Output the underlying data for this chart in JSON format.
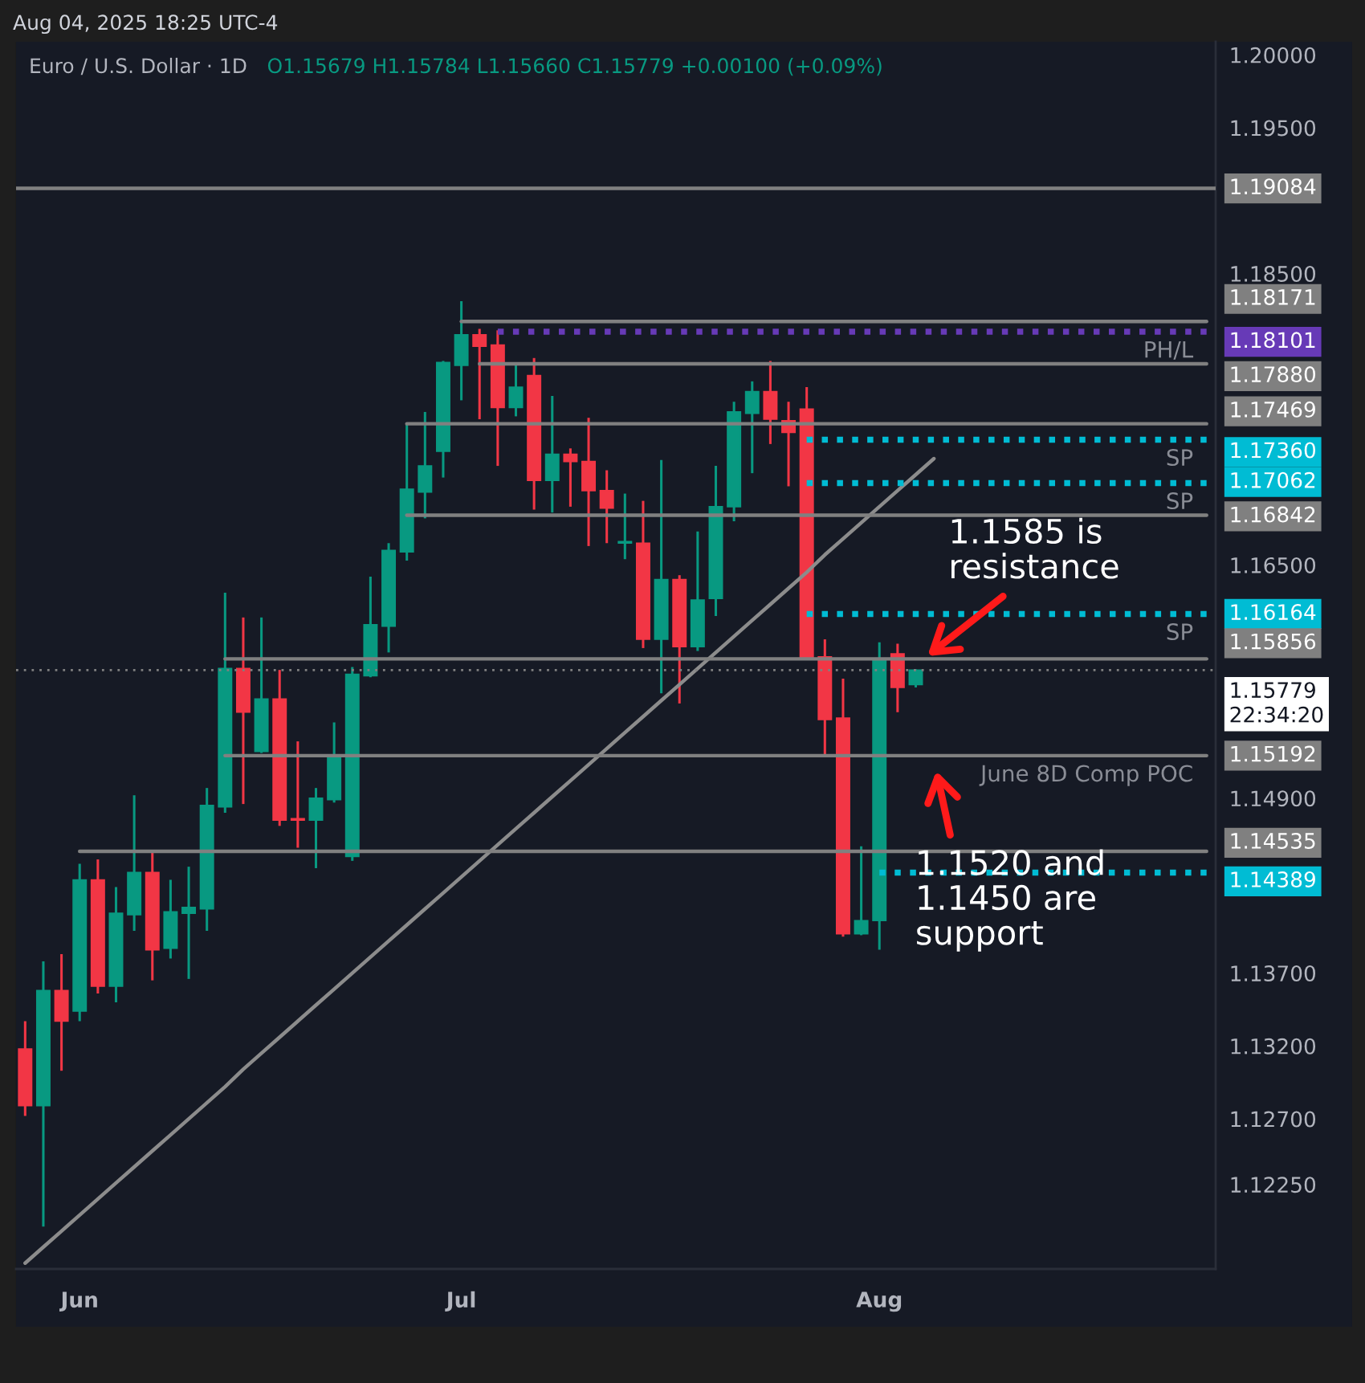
{
  "chart_data": {
    "type": "candlestick",
    "title": "Euro / U.S. Dollar · 1D",
    "subtitle": "O1.15679 H1.15784 L1.15660 C1.15779 +0.00100 (+0.09%)",
    "categories": [
      null,
      null,
      null,
      "Jun",
      null,
      null,
      null,
      null,
      null,
      null,
      null,
      null,
      null,
      null,
      null,
      null,
      null,
      null,
      null,
      null,
      null,
      null,
      null,
      null,
      "Jul",
      null,
      null,
      null,
      null,
      null,
      null,
      null,
      null,
      null,
      null,
      null,
      null,
      null,
      null,
      null,
      null,
      null,
      null,
      null,
      null,
      null,
      null,
      "Aug",
      null,
      null,
      null,
      null,
      null,
      null,
      null,
      null,
      null,
      null,
      null,
      null,
      null,
      null,
      null,
      null,
      null,
      null
    ],
    "ohlc": [
      [
        1.1318,
        1.1337,
        1.1272,
        1.1279
      ],
      [
        1.1279,
        1.1378,
        1.1196,
        1.1358
      ],
      [
        1.1358,
        1.1383,
        1.1303,
        1.1337
      ],
      [
        1.1344,
        1.1445,
        1.1337,
        1.1434
      ],
      [
        1.1434,
        1.1448,
        1.1356,
        1.1361
      ],
      [
        1.1361,
        1.1429,
        1.135,
        1.1411
      ],
      [
        1.141,
        1.1492,
        1.1399,
        1.1439
      ],
      [
        1.1439,
        1.1453,
        1.1365,
        1.1386
      ],
      [
        1.1387,
        1.1434,
        1.138,
        1.1412
      ],
      [
        1.1411,
        1.1443,
        1.1366,
        1.1415
      ],
      [
        1.1414,
        1.1497,
        1.1399,
        1.1485
      ],
      [
        1.1484,
        1.1631,
        1.148,
        1.1579
      ],
      [
        1.1579,
        1.1614,
        1.1486,
        1.1549
      ],
      [
        1.1522,
        1.1614,
        1.1521,
        1.1558
      ],
      [
        1.1558,
        1.1578,
        1.1471,
        1.1475
      ],
      [
        1.1476,
        1.1529,
        1.1456,
        1.1475
      ],
      [
        1.1475,
        1.1497,
        1.1442,
        1.149
      ],
      [
        1.1489,
        1.1542,
        1.1487,
        1.1519
      ],
      [
        1.145,
        1.158,
        1.1447,
        1.1575
      ],
      [
        1.1574,
        1.1642,
        1.1573,
        1.1609
      ],
      [
        1.1608,
        1.1665,
        1.159,
        1.166
      ],
      [
        1.1659,
        1.1747,
        1.1653,
        1.1702
      ],
      [
        1.17,
        1.1755,
        1.1682,
        1.1718
      ],
      [
        1.1728,
        1.179,
        1.171,
        1.1789
      ],
      [
        1.1787,
        1.1831,
        1.1763,
        1.1808
      ],
      [
        1.1808,
        1.1812,
        1.175,
        1.18
      ],
      [
        1.1801,
        1.1811,
        1.1718,
        1.1758
      ],
      [
        1.1758,
        1.1789,
        1.1752,
        1.1772
      ],
      [
        1.178,
        1.1792,
        1.1688,
        1.1708
      ],
      [
        1.1708,
        1.1766,
        1.1686,
        1.1726
      ],
      [
        1.1726,
        1.173,
        1.169,
        1.1721
      ],
      [
        1.1721,
        1.1751,
        1.1663,
        1.1701
      ],
      [
        1.1701,
        1.1715,
        1.1665,
        1.1689
      ],
      [
        1.1665,
        1.1699,
        1.1654,
        1.1666
      ],
      [
        1.1665,
        1.1694,
        1.1593,
        1.1599
      ],
      [
        1.1599,
        1.1722,
        1.1562,
        1.164
      ],
      [
        1.164,
        1.1643,
        1.1555,
        1.1594
      ],
      [
        1.1594,
        1.1673,
        1.1591,
        1.1626
      ],
      [
        1.1627,
        1.1718,
        1.1615,
        1.169
      ],
      [
        1.169,
        1.1762,
        1.168,
        1.1755
      ],
      [
        1.1754,
        1.1776,
        1.1713,
        1.1769
      ],
      [
        1.1769,
        1.179,
        1.1733,
        1.175
      ],
      [
        1.1749,
        1.1762,
        1.1704,
        1.1741
      ],
      [
        1.1757,
        1.1772,
        1.1585,
        1.1586
      ],
      [
        1.1587,
        1.1599,
        1.1518,
        1.1544
      ],
      [
        1.1545,
        1.1572,
        1.1395,
        1.1397
      ],
      [
        1.1397,
        1.1457,
        1.1396,
        1.1406
      ],
      [
        1.1406,
        1.1597,
        1.1386,
        1.1585
      ],
      [
        1.1589,
        1.1596,
        1.1549,
        1.1566
      ],
      [
        1.15679,
        1.15784,
        1.1566,
        1.15779
      ],
      null,
      null,
      null,
      null,
      null,
      null,
      null,
      null,
      null,
      null,
      null,
      null,
      null,
      null,
      null,
      null
    ],
    "colors": [
      "#f23645",
      "#089981",
      "#f23645",
      "#089981",
      "#f23645",
      "#089981",
      "#089981",
      "#f23645",
      "#089981",
      "#089981",
      "#089981",
      "#089981",
      "#f23645",
      "#089981",
      "#f23645",
      "#f23645",
      "#089981",
      "#089981",
      "#089981",
      "#089981",
      "#089981",
      "#089981",
      "#089981",
      "#089981",
      "#089981",
      "#f23645",
      "#f23645",
      "#089981",
      "#f23645",
      "#089981",
      "#f23645",
      "#f23645",
      "#f23645",
      "#089981",
      "#f23645",
      "#089981",
      "#f23645",
      "#089981",
      "#089981",
      "#089981",
      "#089981",
      "#f23645",
      "#f23645",
      "#f23645",
      "#f23645",
      "#f23645",
      "#089981",
      "#089981",
      "#f23645",
      "#089981",
      null,
      null,
      null,
      null,
      null,
      null,
      null,
      null,
      null,
      null,
      null,
      null,
      null,
      null,
      null,
      null
    ],
    "ylim": [
      1.1167,
      1.2009
    ],
    "yticks": [
      {
        "value": 1.2,
        "label": "1.20000"
      },
      {
        "value": 1.195,
        "label": "1.19500"
      },
      {
        "value": 1.185,
        "label": "1.18500"
      },
      {
        "value": 1.165,
        "label": "1.16500"
      },
      {
        "value": 1.149,
        "label": "1.14900"
      },
      {
        "value": 1.137,
        "label": "1.13700"
      },
      {
        "value": 1.132,
        "label": "1.13200"
      },
      {
        "value": 1.127,
        "label": "1.12700"
      },
      {
        "value": 1.1225,
        "label": "1.12250"
      }
    ],
    "series": [
      {
        "type": "line",
        "color": "#8c8c8c",
        "values": [
          1.1171,
          1.1182,
          1.1193,
          1.1204,
          1.1215,
          1.1226,
          1.1237,
          1.1248,
          1.1259,
          1.127,
          1.1281,
          1.1292,
          1.1304,
          1.1315,
          1.1326,
          1.1337,
          1.1348,
          1.1359,
          1.137,
          1.1381,
          1.1392,
          1.1403,
          1.1414,
          1.1425,
          1.1436,
          1.1447,
          1.1458,
          1.1469,
          1.148,
          1.1491,
          1.1502,
          1.1513,
          1.1524,
          1.1535,
          1.1546,
          1.1557,
          1.1568,
          1.1579,
          1.159,
          1.1601,
          1.1612,
          1.1623,
          1.1634,
          1.1645,
          1.1657,
          1.1668,
          1.1679,
          1.169,
          1.1701,
          1.1712,
          1.1723,
          null,
          null,
          null,
          null,
          null,
          null,
          null,
          null,
          null,
          null,
          null,
          null,
          null,
          null,
          null
        ]
      },
      {
        "type": "line",
        "color": "#808080",
        "values": [
          null,
          null,
          null,
          null,
          null,
          null,
          null,
          null,
          null,
          null,
          null,
          null,
          null,
          null,
          null,
          null,
          null,
          null,
          null,
          null,
          null,
          null,
          null,
          null,
          1.18171,
          1.18171,
          1.18171,
          1.18171,
          1.18171,
          1.18171,
          1.18171,
          1.18171,
          1.18171,
          1.18171,
          1.18171,
          1.18171,
          1.18171,
          1.18171,
          1.18171,
          1.18171,
          1.18171,
          1.18171,
          1.18171,
          1.18171,
          1.18171,
          1.18171,
          1.18171,
          1.18171,
          1.18171,
          1.18171,
          1.18171,
          1.18171,
          1.18171,
          1.18171,
          1.18171,
          1.18171,
          1.18171,
          1.18171,
          1.18171,
          1.18171,
          1.18171,
          1.18171,
          1.18171,
          1.18171,
          1.18171,
          1.18171
        ],
        "value_labels": [
          null,
          null,
          null,
          null,
          null,
          null,
          null,
          null,
          null,
          null,
          null,
          null,
          null,
          null,
          null,
          null,
          null,
          null,
          null,
          null,
          null,
          null,
          null,
          null,
          null,
          null,
          null,
          null,
          null,
          null,
          null,
          null,
          null,
          null,
          null,
          null,
          null,
          null,
          null,
          null,
          null,
          null,
          null,
          null,
          null,
          null,
          null,
          null,
          null,
          null,
          null,
          null,
          null,
          null,
          null,
          null,
          null,
          null,
          null,
          null,
          null,
          null,
          null,
          null,
          null,
          "1.18171"
        ]
      },
      {
        "type": "line",
        "color": "#673ab7",
        "line_style": "dotted",
        "values": [
          null,
          null,
          null,
          null,
          null,
          null,
          null,
          null,
          null,
          null,
          null,
          null,
          null,
          null,
          null,
          null,
          null,
          null,
          null,
          null,
          null,
          null,
          null,
          null,
          null,
          null,
          1.18101,
          1.18101,
          1.18101,
          1.18101,
          1.18101,
          1.18101,
          1.18101,
          1.18101,
          1.18101,
          1.18101,
          1.18101,
          1.18101,
          1.18101,
          1.18101,
          1.18101,
          1.18101,
          1.18101,
          1.18101,
          1.18101,
          1.18101,
          1.18101,
          1.18101,
          1.18101,
          1.18101,
          1.18101,
          1.18101,
          1.18101,
          1.18101,
          1.18101,
          1.18101,
          1.18101,
          1.18101,
          1.18101,
          1.18101,
          1.18101,
          1.18101,
          1.18101,
          1.18101,
          1.18101,
          1.18101
        ],
        "value_labels": [
          null,
          null,
          null,
          null,
          null,
          null,
          null,
          null,
          null,
          null,
          null,
          null,
          null,
          null,
          null,
          null,
          null,
          null,
          null,
          null,
          null,
          null,
          null,
          null,
          null,
          null,
          null,
          null,
          null,
          null,
          null,
          null,
          null,
          null,
          null,
          null,
          null,
          null,
          null,
          null,
          null,
          null,
          null,
          null,
          null,
          null,
          null,
          null,
          null,
          null,
          null,
          null,
          null,
          null,
          null,
          null,
          null,
          null,
          null,
          null,
          null,
          null,
          null,
          null,
          null,
          "1.18101"
        ]
      },
      {
        "type": "line",
        "color": "#808080",
        "values": [
          null,
          null,
          null,
          null,
          null,
          null,
          null,
          null,
          null,
          null,
          null,
          null,
          null,
          null,
          null,
          null,
          null,
          null,
          null,
          null,
          null,
          null,
          null,
          null,
          null,
          1.1788,
          1.1788,
          1.1788,
          1.1788,
          1.1788,
          1.1788,
          1.1788,
          1.1788,
          1.1788,
          1.1788,
          1.1788,
          1.1788,
          1.1788,
          1.1788,
          1.1788,
          1.1788,
          1.1788,
          1.1788,
          1.1788,
          1.1788,
          1.1788,
          1.1788,
          1.1788,
          1.1788,
          1.1788,
          1.1788,
          1.1788,
          1.1788,
          1.1788,
          1.1788,
          1.1788,
          1.1788,
          1.1788,
          1.1788,
          1.1788,
          1.1788,
          1.1788,
          1.1788,
          1.1788,
          1.1788,
          1.1788
        ],
        "value_labels": [
          null,
          null,
          null,
          null,
          null,
          null,
          null,
          null,
          null,
          null,
          null,
          null,
          null,
          null,
          null,
          null,
          null,
          null,
          null,
          null,
          null,
          null,
          null,
          null,
          null,
          null,
          null,
          null,
          null,
          null,
          null,
          null,
          null,
          null,
          null,
          null,
          null,
          null,
          null,
          null,
          null,
          null,
          null,
          null,
          null,
          null,
          null,
          null,
          null,
          null,
          null,
          null,
          null,
          null,
          null,
          null,
          null,
          null,
          null,
          null,
          null,
          null,
          null,
          null,
          null,
          "1.17880"
        ]
      },
      {
        "type": "line",
        "color": "#808080",
        "values": [
          null,
          null,
          null,
          null,
          null,
          null,
          null,
          null,
          null,
          null,
          null,
          null,
          null,
          null,
          null,
          null,
          null,
          null,
          null,
          null,
          null,
          1.17469,
          1.17469,
          1.17469,
          1.17469,
          1.17469,
          1.17469,
          1.17469,
          1.17469,
          1.17469,
          1.17469,
          1.17469,
          1.17469,
          1.17469,
          1.17469,
          1.17469,
          1.17469,
          1.17469,
          1.17469,
          1.17469,
          1.17469,
          1.17469,
          1.17469,
          1.17469,
          1.17469,
          1.17469,
          1.17469,
          1.17469,
          1.17469,
          1.17469,
          1.17469,
          1.17469,
          1.17469,
          1.17469,
          1.17469,
          1.17469,
          1.17469,
          1.17469,
          1.17469,
          1.17469,
          1.17469,
          1.17469,
          1.17469,
          1.17469,
          1.17469,
          1.17469
        ],
        "value_labels": [
          null,
          null,
          null,
          null,
          null,
          null,
          null,
          null,
          null,
          null,
          null,
          null,
          null,
          null,
          null,
          null,
          null,
          null,
          null,
          null,
          null,
          null,
          null,
          null,
          null,
          null,
          null,
          null,
          null,
          null,
          null,
          null,
          null,
          null,
          null,
          null,
          null,
          null,
          null,
          null,
          null,
          null,
          null,
          null,
          null,
          null,
          null,
          null,
          null,
          null,
          null,
          null,
          null,
          null,
          null,
          null,
          null,
          null,
          null,
          null,
          null,
          null,
          null,
          null,
          null,
          "1.17469"
        ]
      },
      {
        "type": "line",
        "color": "#00bcd4",
        "line_style": "dotted",
        "values": [
          null,
          null,
          null,
          null,
          null,
          null,
          null,
          null,
          null,
          null,
          null,
          null,
          null,
          null,
          null,
          null,
          null,
          null,
          null,
          null,
          null,
          null,
          null,
          null,
          null,
          null,
          null,
          null,
          null,
          null,
          null,
          null,
          null,
          null,
          null,
          null,
          null,
          null,
          null,
          null,
          null,
          null,
          null,
          1.1736,
          1.1736,
          1.1736,
          1.1736,
          1.1736,
          1.1736,
          1.1736,
          1.1736,
          1.1736,
          1.1736,
          1.1736,
          1.1736,
          1.1736,
          1.1736,
          1.1736,
          1.1736,
          1.1736,
          1.1736,
          1.1736,
          1.1736,
          1.1736,
          1.1736,
          1.1736
        ],
        "value_labels": [
          null,
          null,
          null,
          null,
          null,
          null,
          null,
          null,
          null,
          null,
          null,
          null,
          null,
          null,
          null,
          null,
          null,
          null,
          null,
          null,
          null,
          null,
          null,
          null,
          null,
          null,
          null,
          null,
          null,
          null,
          null,
          null,
          null,
          null,
          null,
          null,
          null,
          null,
          null,
          null,
          null,
          null,
          null,
          null,
          null,
          null,
          null,
          null,
          null,
          null,
          null,
          null,
          null,
          null,
          null,
          null,
          null,
          null,
          null,
          null,
          null,
          null,
          null,
          null,
          null,
          "1.17360"
        ]
      },
      {
        "type": "line",
        "color": "#00bcd4",
        "line_style": "dotted",
        "values": [
          null,
          null,
          null,
          null,
          null,
          null,
          null,
          null,
          null,
          null,
          null,
          null,
          null,
          null,
          null,
          null,
          null,
          null,
          null,
          null,
          null,
          null,
          null,
          null,
          null,
          null,
          null,
          null,
          null,
          null,
          null,
          null,
          null,
          null,
          null,
          null,
          null,
          null,
          null,
          null,
          null,
          null,
          null,
          1.17062,
          1.17062,
          1.17062,
          1.17062,
          1.17062,
          1.17062,
          1.17062,
          1.17062,
          1.17062,
          1.17062,
          1.17062,
          1.17062,
          1.17062,
          1.17062,
          1.17062,
          1.17062,
          1.17062,
          1.17062,
          1.17062,
          1.17062,
          1.17062,
          1.17062,
          1.17062
        ],
        "value_labels": [
          null,
          null,
          null,
          null,
          null,
          null,
          null,
          null,
          null,
          null,
          null,
          null,
          null,
          null,
          null,
          null,
          null,
          null,
          null,
          null,
          null,
          null,
          null,
          null,
          null,
          null,
          null,
          null,
          null,
          null,
          null,
          null,
          null,
          null,
          null,
          null,
          null,
          null,
          null,
          null,
          null,
          null,
          null,
          null,
          null,
          null,
          null,
          null,
          null,
          null,
          null,
          null,
          null,
          null,
          null,
          null,
          null,
          null,
          null,
          null,
          null,
          null,
          null,
          null,
          null,
          "1.17062"
        ]
      },
      {
        "type": "line",
        "color": "#808080",
        "values": [
          null,
          null,
          null,
          null,
          null,
          null,
          null,
          null,
          null,
          null,
          null,
          null,
          null,
          null,
          null,
          null,
          null,
          null,
          null,
          null,
          null,
          1.16842,
          1.16842,
          1.16842,
          1.16842,
          1.16842,
          1.16842,
          1.16842,
          1.16842,
          1.16842,
          1.16842,
          1.16842,
          1.16842,
          1.16842,
          1.16842,
          1.16842,
          1.16842,
          1.16842,
          1.16842,
          1.16842,
          1.16842,
          1.16842,
          1.16842,
          1.16842,
          1.16842,
          1.16842,
          1.16842,
          1.16842,
          1.16842,
          1.16842,
          1.16842,
          1.16842,
          1.16842,
          1.16842,
          1.16842,
          1.16842,
          1.16842,
          1.16842,
          1.16842,
          1.16842,
          1.16842,
          1.16842,
          1.16842,
          1.16842,
          1.16842,
          1.16842
        ],
        "value_labels": [
          null,
          null,
          null,
          null,
          null,
          null,
          null,
          null,
          null,
          null,
          null,
          null,
          null,
          null,
          null,
          null,
          null,
          null,
          null,
          null,
          null,
          null,
          null,
          null,
          null,
          null,
          null,
          null,
          null,
          null,
          null,
          null,
          null,
          null,
          null,
          null,
          null,
          null,
          null,
          null,
          null,
          null,
          null,
          null,
          null,
          null,
          null,
          null,
          null,
          null,
          null,
          null,
          null,
          null,
          null,
          null,
          null,
          null,
          null,
          null,
          null,
          null,
          null,
          null,
          null,
          "1.16842"
        ]
      },
      {
        "type": "line",
        "color": "#00bcd4",
        "line_style": "dotted",
        "values": [
          null,
          null,
          null,
          null,
          null,
          null,
          null,
          null,
          null,
          null,
          null,
          null,
          null,
          null,
          null,
          null,
          null,
          null,
          null,
          null,
          null,
          null,
          null,
          null,
          null,
          null,
          null,
          null,
          null,
          null,
          null,
          null,
          null,
          null,
          null,
          null,
          null,
          null,
          null,
          null,
          null,
          null,
          null,
          1.16164,
          1.16164,
          1.16164,
          1.16164,
          1.16164,
          1.16164,
          1.16164,
          1.16164,
          1.16164,
          1.16164,
          1.16164,
          1.16164,
          1.16164,
          1.16164,
          1.16164,
          1.16164,
          1.16164,
          1.16164,
          1.16164,
          1.16164,
          1.16164,
          1.16164,
          1.16164
        ],
        "value_labels": [
          null,
          null,
          null,
          null,
          null,
          null,
          null,
          null,
          null,
          null,
          null,
          null,
          null,
          null,
          null,
          null,
          null,
          null,
          null,
          null,
          null,
          null,
          null,
          null,
          null,
          null,
          null,
          null,
          null,
          null,
          null,
          null,
          null,
          null,
          null,
          null,
          null,
          null,
          null,
          null,
          null,
          null,
          null,
          null,
          null,
          null,
          null,
          null,
          null,
          null,
          null,
          null,
          null,
          null,
          null,
          null,
          null,
          null,
          null,
          null,
          null,
          null,
          null,
          null,
          null,
          "1.16164"
        ]
      },
      {
        "type": "line",
        "color": "#808080",
        "values": [
          null,
          null,
          null,
          null,
          null,
          null,
          null,
          null,
          null,
          null,
          null,
          1.15856,
          1.15856,
          1.15856,
          1.15856,
          1.15856,
          1.15856,
          1.15856,
          1.15856,
          1.15856,
          1.15856,
          1.15856,
          1.15856,
          1.15856,
          1.15856,
          1.15856,
          1.15856,
          1.15856,
          1.15856,
          1.15856,
          1.15856,
          1.15856,
          1.15856,
          1.15856,
          1.15856,
          1.15856,
          1.15856,
          1.15856,
          1.15856,
          1.15856,
          1.15856,
          1.15856,
          1.15856,
          1.15856,
          1.15856,
          1.15856,
          1.15856,
          1.15856,
          1.15856,
          1.15856,
          1.15856,
          1.15856,
          1.15856,
          1.15856,
          1.15856,
          1.15856,
          1.15856,
          1.15856,
          1.15856,
          1.15856,
          1.15856,
          1.15856,
          1.15856,
          1.15856,
          1.15856,
          1.15856
        ],
        "value_labels": [
          null,
          null,
          null,
          null,
          null,
          null,
          null,
          null,
          null,
          null,
          null,
          null,
          null,
          null,
          null,
          null,
          null,
          null,
          null,
          null,
          null,
          null,
          null,
          null,
          null,
          null,
          null,
          null,
          null,
          null,
          null,
          null,
          null,
          null,
          null,
          null,
          null,
          null,
          null,
          null,
          null,
          null,
          null,
          null,
          null,
          null,
          null,
          null,
          null,
          null,
          null,
          null,
          null,
          null,
          null,
          null,
          null,
          null,
          null,
          null,
          null,
          null,
          null,
          null,
          null,
          "1.15856"
        ]
      },
      {
        "type": "line",
        "color": "#808080",
        "values": [
          null,
          null,
          null,
          null,
          null,
          null,
          null,
          null,
          null,
          null,
          null,
          1.15192,
          1.15192,
          1.15192,
          1.15192,
          1.15192,
          1.15192,
          1.15192,
          1.15192,
          1.15192,
          1.15192,
          1.15192,
          1.15192,
          1.15192,
          1.15192,
          1.15192,
          1.15192,
          1.15192,
          1.15192,
          1.15192,
          1.15192,
          1.15192,
          1.15192,
          1.15192,
          1.15192,
          1.15192,
          1.15192,
          1.15192,
          1.15192,
          1.15192,
          1.15192,
          1.15192,
          1.15192,
          1.15192,
          1.15192,
          1.15192,
          1.15192,
          1.15192,
          1.15192,
          1.15192,
          1.15192,
          1.15192,
          1.15192,
          1.15192,
          1.15192,
          1.15192,
          1.15192,
          1.15192,
          1.15192,
          1.15192,
          1.15192,
          1.15192,
          1.15192,
          1.15192,
          1.15192,
          1.15192
        ],
        "value_labels": [
          null,
          null,
          null,
          null,
          null,
          null,
          null,
          null,
          null,
          null,
          null,
          null,
          null,
          null,
          null,
          null,
          null,
          null,
          null,
          null,
          null,
          null,
          null,
          null,
          null,
          null,
          null,
          null,
          null,
          null,
          null,
          null,
          null,
          null,
          null,
          null,
          null,
          null,
          null,
          null,
          null,
          null,
          null,
          null,
          null,
          null,
          null,
          null,
          null,
          null,
          null,
          null,
          null,
          null,
          null,
          null,
          null,
          null,
          null,
          null,
          null,
          null,
          null,
          null,
          null,
          "1.15192"
        ]
      },
      {
        "type": "line",
        "color": "#808080",
        "values": [
          null,
          null,
          null,
          1.14535,
          1.14535,
          1.14535,
          1.14535,
          1.14535,
          1.14535,
          1.14535,
          1.14535,
          1.14535,
          1.14535,
          1.14535,
          1.14535,
          1.14535,
          1.14535,
          1.14535,
          1.14535,
          1.14535,
          1.14535,
          1.14535,
          1.14535,
          1.14535,
          1.14535,
          1.14535,
          1.14535,
          1.14535,
          1.14535,
          1.14535,
          1.14535,
          1.14535,
          1.14535,
          1.14535,
          1.14535,
          1.14535,
          1.14535,
          1.14535,
          1.14535,
          1.14535,
          1.14535,
          1.14535,
          1.14535,
          1.14535,
          1.14535,
          1.14535,
          1.14535,
          1.14535,
          1.14535,
          1.14535,
          1.14535,
          1.14535,
          1.14535,
          1.14535,
          1.14535,
          1.14535,
          1.14535,
          1.14535,
          1.14535,
          1.14535,
          1.14535,
          1.14535,
          1.14535,
          1.14535,
          1.14535,
          1.14535
        ],
        "value_labels": [
          null,
          null,
          null,
          null,
          null,
          null,
          null,
          null,
          null,
          null,
          null,
          null,
          null,
          null,
          null,
          null,
          null,
          null,
          null,
          null,
          null,
          null,
          null,
          null,
          null,
          null,
          null,
          null,
          null,
          null,
          null,
          null,
          null,
          null,
          null,
          null,
          null,
          null,
          null,
          null,
          null,
          null,
          null,
          null,
          null,
          null,
          null,
          null,
          null,
          null,
          null,
          null,
          null,
          null,
          null,
          null,
          null,
          null,
          null,
          null,
          null,
          null,
          null,
          null,
          null,
          "1.14535"
        ]
      },
      {
        "type": "line",
        "color": "#00bcd4",
        "line_style": "dotted",
        "values": [
          null,
          null,
          null,
          null,
          null,
          null,
          null,
          null,
          null,
          null,
          null,
          null,
          null,
          null,
          null,
          null,
          null,
          null,
          null,
          null,
          null,
          null,
          null,
          null,
          null,
          null,
          null,
          null,
          null,
          null,
          null,
          null,
          null,
          null,
          null,
          null,
          null,
          null,
          null,
          null,
          null,
          null,
          null,
          null,
          null,
          null,
          null,
          1.14389,
          1.14389,
          1.14389,
          1.14389,
          1.14389,
          1.14389,
          1.14389,
          1.14389,
          1.14389,
          1.14389,
          1.14389,
          1.14389,
          1.14389,
          1.14389,
          1.14389,
          1.14389,
          1.14389,
          1.14389,
          1.14389
        ],
        "value_labels": [
          null,
          null,
          null,
          null,
          null,
          null,
          null,
          null,
          null,
          null,
          null,
          null,
          null,
          null,
          null,
          null,
          null,
          null,
          null,
          null,
          null,
          null,
          null,
          null,
          null,
          null,
          null,
          null,
          null,
          null,
          null,
          null,
          null,
          null,
          null,
          null,
          null,
          null,
          null,
          null,
          null,
          null,
          null,
          null,
          null,
          null,
          null,
          null,
          null,
          null,
          null,
          null,
          null,
          null,
          null,
          null,
          null,
          null,
          null,
          null,
          null,
          null,
          null,
          null,
          null,
          "1.14389"
        ]
      }
    ],
    "ref_lines": [
      {
        "axis": "y",
        "value": 1.19084,
        "label": "1.19084",
        "color": "#808080"
      },
      {
        "axis": "y",
        "value": 1.15779,
        "label": "1.15779\n22:34:20",
        "color": "#808080",
        "line_style": "dotted"
      }
    ],
    "annotations": [
      "Aug 04, 2025 18:25 UTC-4",
      {
        "text": "PH/L",
        "y": 1.18101
      },
      {
        "text": "SP",
        "y": 1.1736
      },
      {
        "text": "SP",
        "y": 1.17062
      },
      {
        "text": "SP",
        "y": 1.16164
      },
      {
        "text": "June 8D Comp POC",
        "y": 1.15192
      },
      {
        "text": "1.1585 is\nresistance",
        "y": 1.15856
      },
      {
        "text": "1.1520 and\n1.1450 are\nsupport",
        "y": 1.15192
      }
    ]
  }
}
